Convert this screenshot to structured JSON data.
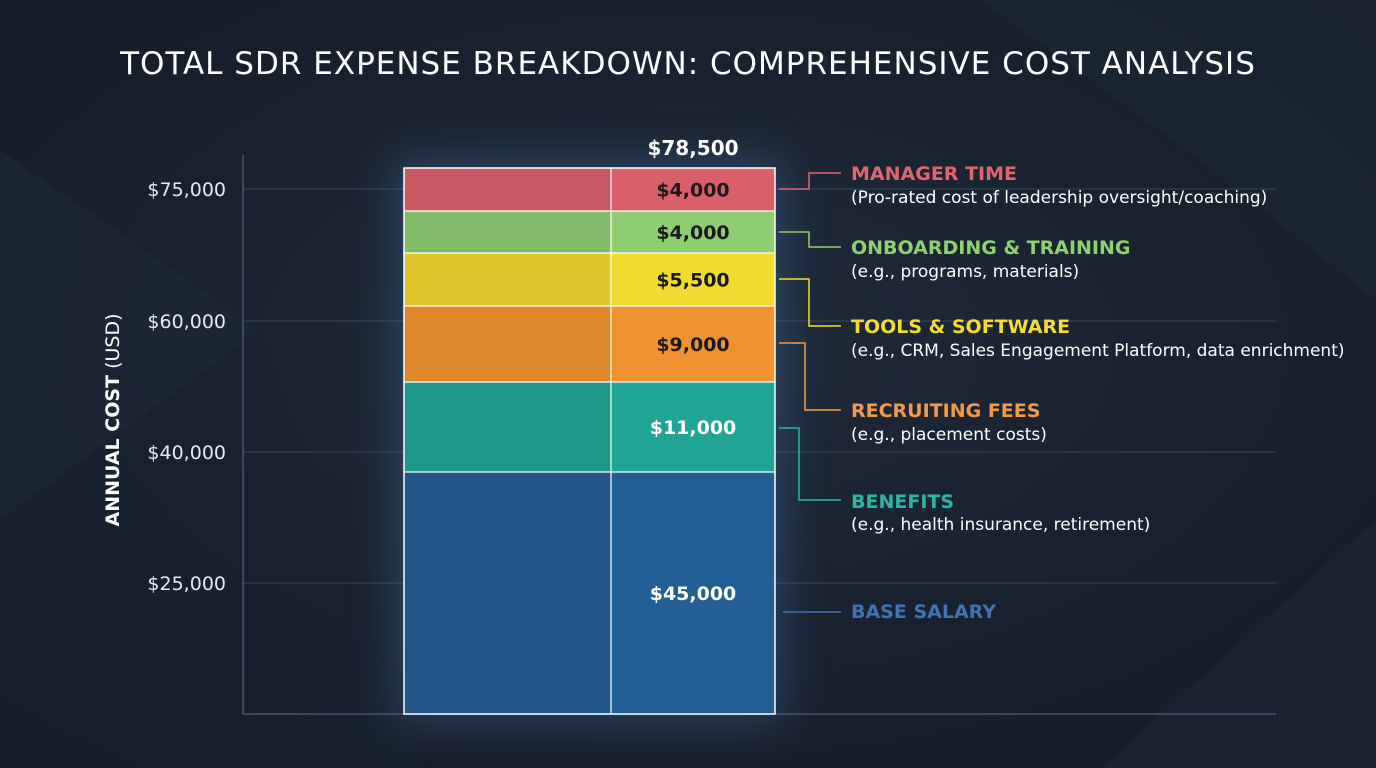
{
  "title": "TOTAL SDR EXPENSE BREAKDOWN: COMPREHENSIVE COST ANALYSIS",
  "chart_data": {
    "type": "bar",
    "stacked": true,
    "title": "TOTAL SDR EXPENSE BREAKDOWN: COMPREHENSIVE COST ANALYSIS",
    "xlabel": "",
    "ylabel_bold": "ANNUAL COST",
    "ylabel_unit": "(USD)",
    "yticks": [
      {
        "value": 25000,
        "label": "$25,000"
      },
      {
        "value": 40000,
        "label": "$40,000"
      },
      {
        "value": 60000,
        "label": "$60,000"
      },
      {
        "value": 75000,
        "label": "$75,000"
      }
    ],
    "total": {
      "value": 78500,
      "label": "$78,500"
    },
    "grid": true,
    "legend_position": "right",
    "series": [
      {
        "name": "BASE SALARY",
        "description": "",
        "value": 45000,
        "label": "$45,000",
        "color": "#235e94",
        "label_color": "#ffffff",
        "legend_color": "#3f74b0"
      },
      {
        "name": "BENEFITS",
        "description": "(e.g., health insurance, retirement)",
        "value": 11000,
        "label": "$11,000",
        "color": "#1fa495",
        "label_color": "#ffffff",
        "legend_color": "#2bb5a6"
      },
      {
        "name": "RECRUITING FEES",
        "description": "(e.g., placement costs)",
        "value": 9000,
        "label": "$9,000",
        "color": "#f0922f",
        "label_color": "#1a1a1a",
        "legend_color": "#f2994a"
      },
      {
        "name": "TOOLS & SOFTWARE",
        "description": "(e.g., CRM, Sales Engagement Platform, data enrichment)",
        "value": 5500,
        "label": "$5,500",
        "color": "#f2da30",
        "label_color": "#1a1a1a",
        "legend_color": "#f5dc2e"
      },
      {
        "name": "ONBOARDING & TRAINING",
        "description": "(e.g., programs, materials)",
        "value": 4000,
        "label": "$4,000",
        "color": "#8fcc72",
        "label_color": "#1a1a1a",
        "legend_color": "#8fd16e"
      },
      {
        "name": "MANAGER TIME",
        "description": "(Pro-rated cost of leadership oversight/coaching)",
        "value": 4000,
        "label": "$4,000",
        "color": "#d9606a",
        "label_color": "#1a1a1a",
        "legend_color": "#e0656e"
      }
    ]
  }
}
